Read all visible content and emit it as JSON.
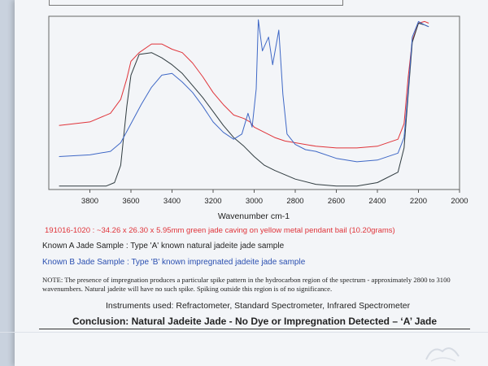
{
  "sample_line": {
    "id": "191016-1020",
    "sep": " : ",
    "desc": "~34.26 x 26.30 x 5.95mm green jade caving on yellow metal pendant bail (10.20grams)",
    "color": "#e0343a"
  },
  "known_a": "Known A Jade Sample : Type 'A' known natural jadeite jade sample",
  "known_b": "Known B Jade Sample : Type 'B' known impregnated jadeite jade sample",
  "note": "NOTE: The presence of impregnation produces a particular spike pattern in the hydrocarbon region of the spectrum - approximately 2800 to 3100 wavenumbers. Natural jadeite will have no such spike. Spiking outside this region is of no significance.",
  "instruments": "Instruments used: Refractometer, Standard Spectrometer, Infrared Spectrometer",
  "conclusion": "Conclusion: Natural Jadeite Jade - No Dye or Impregnation Detected – ‘A’ Jade",
  "chart_data": {
    "type": "line",
    "xlabel": "Wavenumber cm-1",
    "x_reversed": true,
    "xlim": [
      4000,
      2000
    ],
    "ylim": [
      0,
      1
    ],
    "x_ticks": [
      3800,
      3600,
      3400,
      3200,
      3000,
      2800,
      2600,
      2400,
      2200,
      2000
    ],
    "y_ticks_shown": false,
    "grid": false,
    "series": [
      {
        "color": "#e0343a",
        "x": [
          3950,
          3800,
          3700,
          3650,
          3620,
          3600,
          3560,
          3500,
          3450,
          3400,
          3350,
          3300,
          3250,
          3200,
          3150,
          3100,
          3050,
          3020,
          3000,
          2950,
          2900,
          2850,
          2800,
          2700,
          2600,
          2500,
          2400,
          2300,
          2270,
          2250,
          2230,
          2200,
          2170,
          2150
        ],
        "y": [
          0.37,
          0.39,
          0.44,
          0.52,
          0.64,
          0.74,
          0.79,
          0.84,
          0.84,
          0.81,
          0.79,
          0.73,
          0.65,
          0.56,
          0.49,
          0.43,
          0.41,
          0.39,
          0.36,
          0.33,
          0.3,
          0.28,
          0.27,
          0.25,
          0.24,
          0.24,
          0.25,
          0.29,
          0.38,
          0.65,
          0.86,
          0.96,
          0.97,
          0.96
        ]
      },
      {
        "color": "#2f3b3f",
        "x": [
          3950,
          3800,
          3720,
          3680,
          3650,
          3620,
          3600,
          3560,
          3500,
          3450,
          3400,
          3350,
          3300,
          3250,
          3200,
          3150,
          3100,
          3050,
          3000,
          2950,
          2900,
          2800,
          2700,
          2600,
          2500,
          2400,
          2300,
          2270,
          2250,
          2230,
          2200,
          2170,
          2150
        ],
        "y": [
          0.02,
          0.02,
          0.02,
          0.04,
          0.14,
          0.48,
          0.66,
          0.78,
          0.79,
          0.76,
          0.72,
          0.67,
          0.6,
          0.53,
          0.45,
          0.37,
          0.3,
          0.25,
          0.19,
          0.14,
          0.11,
          0.06,
          0.03,
          0.02,
          0.02,
          0.04,
          0.1,
          0.24,
          0.55,
          0.85,
          0.96,
          0.95,
          0.94
        ]
      },
      {
        "color": "#3f68c6",
        "x": [
          3950,
          3800,
          3700,
          3650,
          3600,
          3550,
          3500,
          3450,
          3400,
          3350,
          3300,
          3250,
          3200,
          3150,
          3100,
          3060,
          3030,
          3010,
          2990,
          2980,
          2960,
          2930,
          2910,
          2880,
          2860,
          2840,
          2800,
          2750,
          2700,
          2600,
          2500,
          2400,
          2300,
          2270,
          2250,
          2230,
          2200,
          2170,
          2150
        ],
        "y": [
          0.19,
          0.2,
          0.22,
          0.27,
          0.38,
          0.49,
          0.59,
          0.66,
          0.67,
          0.62,
          0.56,
          0.48,
          0.39,
          0.33,
          0.29,
          0.32,
          0.44,
          0.36,
          0.58,
          0.98,
          0.8,
          0.88,
          0.72,
          0.92,
          0.55,
          0.32,
          0.26,
          0.23,
          0.22,
          0.18,
          0.16,
          0.17,
          0.21,
          0.3,
          0.58,
          0.88,
          0.97,
          0.95,
          0.94
        ]
      }
    ]
  }
}
